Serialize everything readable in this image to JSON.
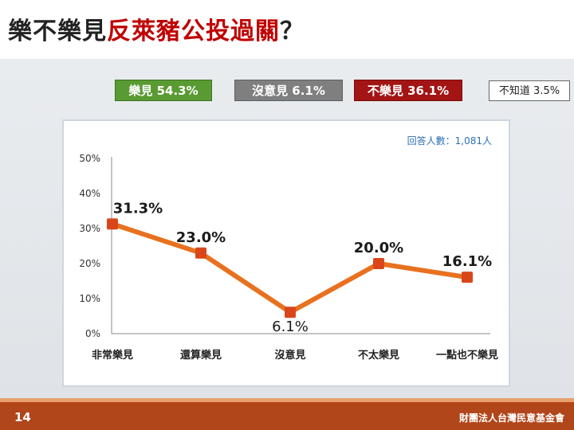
{
  "title": {
    "part1": "樂不樂見",
    "part2": "反萊豬公投過關",
    "part3": "？"
  },
  "summary": {
    "favor": "樂見 54.3%",
    "neutral": "沒意見 6.1%",
    "against": "不樂見 36.1%",
    "unknown": "不知道 3.5%"
  },
  "colors": {
    "line": "#e8711f",
    "marker": "#d9461a",
    "favor": "#5a9a32",
    "neutral": "#7f7f7f",
    "against": "#a31515",
    "footer": "#b0461a"
  },
  "chart_data": {
    "type": "line",
    "categories": [
      "非常樂見",
      "還算樂見",
      "沒意見",
      "不太樂見",
      "一點也不樂見"
    ],
    "values": [
      31.3,
      23.0,
      6.1,
      20.0,
      16.1
    ],
    "value_labels": [
      "31.3%",
      "23.0%",
      "6.1%",
      "20.0%",
      "16.1%"
    ],
    "ylim": [
      0,
      50
    ],
    "yticks": [
      "0%",
      "10%",
      "20%",
      "30%",
      "40%",
      "50%"
    ],
    "annotation": "回答人數：1,081人",
    "grid": false
  },
  "footer": {
    "page": "14",
    "org": "財團法人台灣民意基金會"
  }
}
